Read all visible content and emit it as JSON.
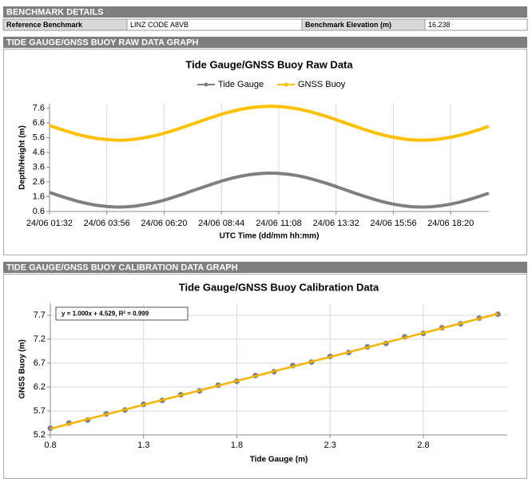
{
  "benchmark": {
    "title": "BENCHMARK DETAILS",
    "cells": [
      "Reference Benchmark",
      "LINZ CODE A8VB",
      "Benchmark Elevation (m)",
      "16.238"
    ]
  },
  "sections": [
    "TIDE GAUGE/GNSS BUOY RAW DATA GRAPH",
    "TIDE GAUGE/GNSS BUOY CALIBRATION DATA GRAPH"
  ],
  "chart_data": [
    {
      "type": "line",
      "title": "Tide Gauge/GNSS Buoy Raw Data",
      "x_label": "UTC Time (dd/mm hh:mm)",
      "y_label": "Depth/Height (m)",
      "x": [
        "24/06 01:32",
        "24/06 01:56",
        "24/06 02:20",
        "24/06 02:44",
        "24/06 03:08",
        "24/06 03:32",
        "24/06 03:56",
        "24/06 04:20",
        "24/06 04:44",
        "24/06 05:08",
        "24/06 05:32",
        "24/06 05:56",
        "24/06 06:20",
        "24/06 06:44",
        "24/06 07:08",
        "24/06 07:32",
        "24/06 07:56",
        "24/06 08:20",
        "24/06 08:44",
        "24/06 09:08",
        "24/06 09:32",
        "24/06 09:56",
        "24/06 10:20",
        "24/06 10:44",
        "24/06 11:08",
        "24/06 11:32",
        "24/06 11:56",
        "24/06 12:20",
        "24/06 12:44",
        "24/06 13:08",
        "24/06 13:32",
        "24/06 13:56",
        "24/06 14:20",
        "24/06 14:44",
        "24/06 15:08",
        "24/06 15:32",
        "24/06 15:56",
        "24/06 16:20",
        "24/06 16:44",
        "24/06 17:08",
        "24/06 17:32",
        "24/06 17:56",
        "24/06 18:20",
        "24/06 18:44",
        "24/06 19:08",
        "24/06 19:32",
        "24/06 19:56"
      ],
      "series": [
        {
          "name": "Tide Gauge",
          "color": "#7f7f7f",
          "values": [
            1.89,
            1.67,
            1.47,
            1.28,
            1.13,
            1.01,
            0.94,
            0.9,
            0.91,
            0.97,
            1.07,
            1.2,
            1.37,
            1.57,
            1.78,
            2.01,
            2.23,
            2.45,
            2.66,
            2.84,
            2.99,
            3.1,
            3.17,
            3.2,
            3.18,
            3.12,
            3.02,
            2.88,
            2.7,
            2.51,
            2.29,
            2.06,
            1.84,
            1.62,
            1.42,
            1.24,
            1.1,
            0.99,
            0.92,
            0.9,
            0.92,
            0.99,
            1.1,
            1.24,
            1.42,
            1.62,
            1.84
          ]
        },
        {
          "name": "GNSS Buoy",
          "color": "#ffc000",
          "values": [
            6.42,
            6.2,
            6.0,
            5.81,
            5.66,
            5.54,
            5.47,
            5.43,
            5.44,
            5.5,
            5.6,
            5.73,
            5.9,
            6.1,
            6.31,
            6.54,
            6.76,
            6.98,
            7.19,
            7.37,
            7.52,
            7.63,
            7.7,
            7.73,
            7.71,
            7.65,
            7.55,
            7.41,
            7.23,
            7.04,
            6.82,
            6.59,
            6.37,
            6.15,
            5.95,
            5.77,
            5.63,
            5.52,
            5.45,
            5.43,
            5.45,
            5.52,
            5.63,
            5.77,
            5.95,
            6.15,
            6.37
          ]
        }
      ],
      "xlim": [
        "24/06 01:32",
        "24/06 19:56"
      ],
      "xticks": [
        "24/06 01:32",
        "24/06 03:56",
        "24/06 06:20",
        "24/06 08:44",
        "24/06 11:08",
        "24/06 13:32",
        "24/06 15:56",
        "24/06 18:20"
      ],
      "ylim": [
        0.6,
        7.9
      ],
      "yticks": [
        0.6,
        1.6,
        2.6,
        3.6,
        4.6,
        5.6,
        6.6,
        7.6
      ],
      "grid": "x",
      "legend": "top"
    },
    {
      "type": "scatter",
      "title": "Tide Gauge/GNSS Buoy Calibration Data",
      "x_label": "Tide Gauge (m)",
      "y_label": "GNSS Buoy (m)",
      "x": [
        0.8,
        0.9,
        1.0,
        1.1,
        1.2,
        1.3,
        1.4,
        1.5,
        1.6,
        1.7,
        1.8,
        1.9,
        2.0,
        2.1,
        2.2,
        2.3,
        2.4,
        2.5,
        2.6,
        2.7,
        2.8,
        2.9,
        3.0,
        3.1,
        3.2
      ],
      "values": [
        5.34,
        5.45,
        5.51,
        5.64,
        5.72,
        5.84,
        5.92,
        6.04,
        6.12,
        6.24,
        6.32,
        6.44,
        6.52,
        6.65,
        6.72,
        6.84,
        6.92,
        7.04,
        7.11,
        7.25,
        7.32,
        7.44,
        7.52,
        7.64,
        7.72
      ],
      "color": "#808080",
      "annotation": "y = 1.000x + 4.529, R² = 0.999",
      "fit": {
        "slope": 1.0,
        "intercept": 4.529,
        "color": "#f4b400"
      },
      "xlim": [
        0.8,
        3.25
      ],
      "xticks": [
        0.8,
        1.3,
        1.8,
        2.3,
        2.8
      ],
      "ylim": [
        5.2,
        7.95
      ],
      "yticks": [
        5.2,
        5.7,
        6.2,
        6.7,
        7.2,
        7.7
      ],
      "grid": "both"
    }
  ]
}
